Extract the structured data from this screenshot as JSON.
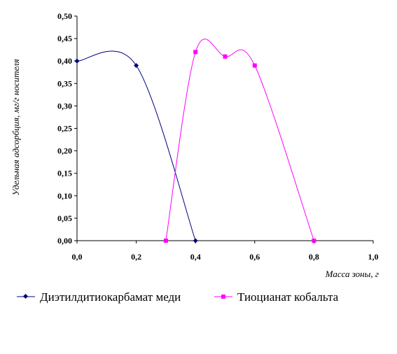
{
  "chart_data": {
    "type": "line",
    "xlabel": "Масса зоны, г",
    "ylabel": "Удельная адсорбция, мг/г носителя",
    "xlim": [
      0,
      1
    ],
    "ylim": [
      0,
      0.5
    ],
    "x_ticks": [
      "0,0",
      "0,2",
      "0,4",
      "0,6",
      "0,8",
      "1,0"
    ],
    "y_ticks": [
      "0,00",
      "0,05",
      "0,10",
      "0,15",
      "0,20",
      "0,25",
      "0,30",
      "0,35",
      "0,40",
      "0,45",
      "0,50"
    ],
    "grid": false,
    "legend_position": "bottom",
    "smooth": true,
    "series": [
      {
        "name": "Диэтилдитиокарбамат меди",
        "color": "#000080",
        "marker": "diamond",
        "x": [
          0.0,
          0.2,
          0.4
        ],
        "y": [
          0.4,
          0.39,
          0.0
        ]
      },
      {
        "name": "Тиоцианат кобальта",
        "color": "#ff00ff",
        "marker": "square",
        "x": [
          0.3,
          0.4,
          0.5,
          0.6,
          0.8
        ],
        "y": [
          0.0,
          0.42,
          0.41,
          0.39,
          0.0
        ]
      }
    ]
  }
}
